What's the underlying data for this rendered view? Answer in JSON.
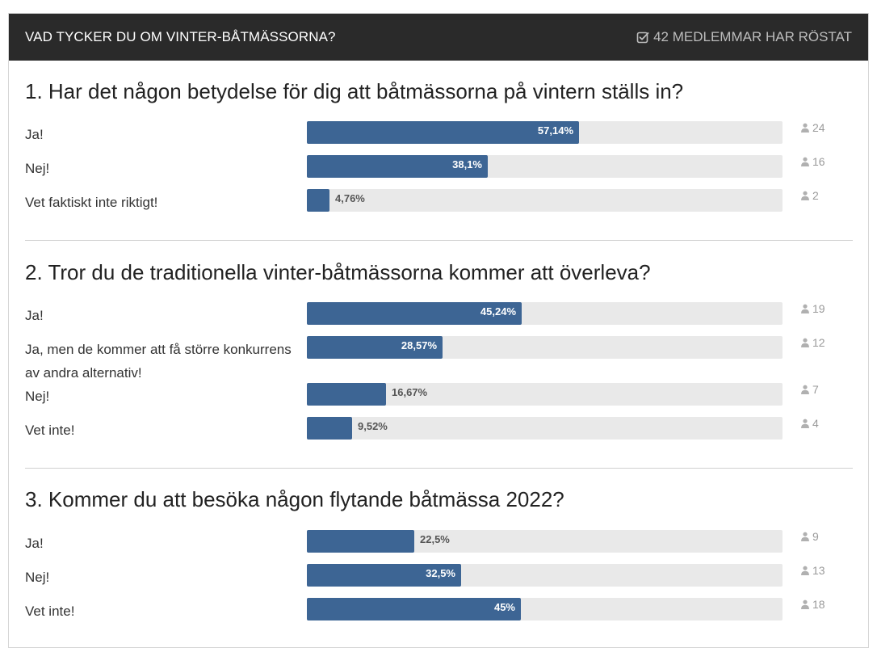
{
  "header": {
    "title": "VAD TYCKER DU OM VINTER-BÅTMÄSSORNA?",
    "votes_text": "42 MEDLEMMAR HAR RÖSTAT"
  },
  "colors": {
    "bar": "#3d6594",
    "track": "#e9e9e9",
    "header_bg": "#2a2a2a"
  },
  "questions": [
    {
      "title": "1. Har det någon betydelse för dig att båtmässorna på vintern ställs in?",
      "options": [
        {
          "label": "Ja!",
          "percent_text": "57,14%",
          "percent": 57.14,
          "votes": "24"
        },
        {
          "label": "Nej!",
          "percent_text": "38,1%",
          "percent": 38.1,
          "votes": "16"
        },
        {
          "label": "Vet faktiskt inte riktigt!",
          "percent_text": "4,76%",
          "percent": 4.76,
          "votes": "2"
        }
      ]
    },
    {
      "title": "2. Tror du de traditionella vinter-båtmässorna kommer att överleva?",
      "options": [
        {
          "label": "Ja!",
          "percent_text": "45,24%",
          "percent": 45.24,
          "votes": "19"
        },
        {
          "label": "Ja, men de kommer att få större konkurrens av andra alternativ!",
          "percent_text": "28,57%",
          "percent": 28.57,
          "votes": "12"
        },
        {
          "label": "Nej!",
          "percent_text": "16,67%",
          "percent": 16.67,
          "votes": "7"
        },
        {
          "label": "Vet inte!",
          "percent_text": "9,52%",
          "percent": 9.52,
          "votes": "4"
        }
      ]
    },
    {
      "title": "3. Kommer du att besöka någon flytande båtmässa 2022?",
      "options": [
        {
          "label": "Ja!",
          "percent_text": "22,5%",
          "percent": 22.5,
          "votes": "9"
        },
        {
          "label": "Nej!",
          "percent_text": "32,5%",
          "percent": 32.5,
          "votes": "13"
        },
        {
          "label": "Vet inte!",
          "percent_text": "45%",
          "percent": 45,
          "votes": "18"
        }
      ]
    }
  ]
}
